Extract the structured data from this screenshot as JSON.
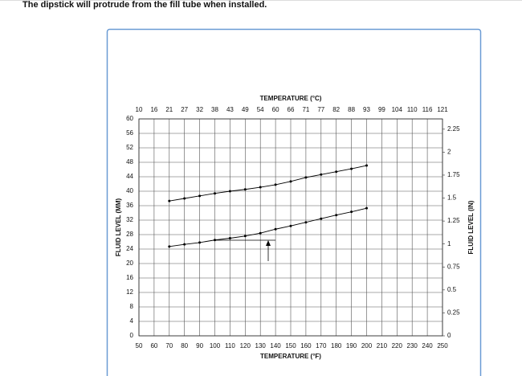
{
  "page_text": "The dipstick will protrude from the fill tube when installed.",
  "chart_data": {
    "type": "line",
    "x_top_label": "TEMPERATURE (°C)",
    "x_label": "TEMPERATURE (°F)",
    "y_label": "FLUID LEVEL (MM)",
    "y2_label": "FLUID LEVEL (IN)",
    "x": [
      70,
      80,
      90,
      100,
      110,
      120,
      130,
      140,
      150,
      160,
      170,
      180,
      190,
      200
    ],
    "series": [
      {
        "color": "#000000",
        "values": [
          37.3,
          38.0,
          38.7,
          39.4,
          40.0,
          40.5,
          41.1,
          41.8,
          42.7,
          43.8,
          44.6,
          45.4,
          46.2,
          47.1
        ]
      },
      {
        "color": "#000000",
        "values": [
          24.7,
          25.3,
          25.8,
          26.5,
          27.0,
          27.6,
          28.4,
          29.5,
          30.4,
          31.4,
          32.4,
          33.4,
          34.3,
          35.3
        ]
      }
    ],
    "xlim": [
      50,
      250
    ],
    "xticks": [
      50,
      60,
      70,
      80,
      90,
      100,
      110,
      120,
      130,
      140,
      150,
      160,
      170,
      180,
      190,
      200,
      210,
      220,
      230,
      240,
      250
    ],
    "x2ticks": [
      {
        "value": 50,
        "label": "10"
      },
      {
        "value": 60,
        "label": "16"
      },
      {
        "value": 70,
        "label": "21"
      },
      {
        "value": 80,
        "label": "27"
      },
      {
        "value": 90,
        "label": "32"
      },
      {
        "value": 100,
        "label": "38"
      },
      {
        "value": 110,
        "label": "43"
      },
      {
        "value": 120,
        "label": "49"
      },
      {
        "value": 130,
        "label": "54"
      },
      {
        "value": 140,
        "label": "60"
      },
      {
        "value": 150,
        "label": "66"
      },
      {
        "value": 160,
        "label": "71"
      },
      {
        "value": 170,
        "label": "77"
      },
      {
        "value": 180,
        "label": "82"
      },
      {
        "value": 190,
        "label": "88"
      },
      {
        "value": 200,
        "label": "93"
      },
      {
        "value": 210,
        "label": "99"
      },
      {
        "value": 220,
        "label": "104"
      },
      {
        "value": 230,
        "label": "110"
      },
      {
        "value": 240,
        "label": "116"
      },
      {
        "value": 250,
        "label": "121"
      }
    ],
    "ylim": [
      0,
      60
    ],
    "yticks": [
      0,
      4,
      8,
      12,
      16,
      20,
      24,
      28,
      32,
      36,
      40,
      44,
      48,
      52,
      56,
      60
    ],
    "y2lim": [
      0,
      2.362
    ],
    "y2ticks": [
      0,
      0.25,
      0.5,
      0.75,
      1,
      1.25,
      1.5,
      1.75,
      2,
      2.25
    ],
    "grid": true
  }
}
